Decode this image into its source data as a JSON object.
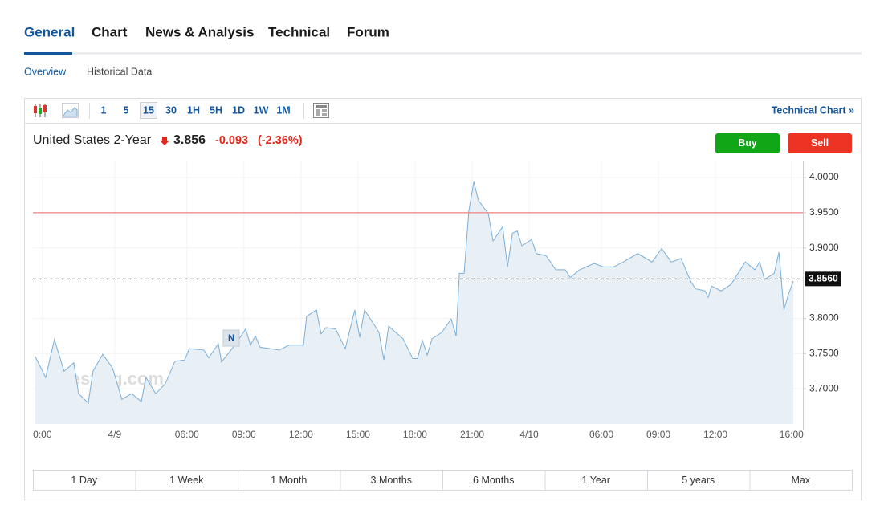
{
  "tabs": [
    "General",
    "Chart",
    "News & Analysis",
    "Technical",
    "Forum"
  ],
  "subtabs": [
    "Overview",
    "Historical Data"
  ],
  "toolbar": {
    "intervals": [
      "1",
      "5",
      "15",
      "30",
      "1H",
      "5H",
      "1D",
      "1W",
      "1M"
    ],
    "technical_chart": "Technical Chart »"
  },
  "quote": {
    "name": "United States 2-Year",
    "price": "3.856",
    "change": "-0.093",
    "change_percent": "(-2.36%)"
  },
  "buttons": {
    "buy": "Buy",
    "sell": "Sell"
  },
  "ranges": [
    "1 Day",
    "1 Week",
    "1 Month",
    "3 Months",
    "6 Months",
    "1 Year",
    "5 years",
    "Max"
  ],
  "chart_data": {
    "type": "area",
    "color": "#7aaed8",
    "fill_color": "#e8f0f6",
    "grid": true,
    "xlim": [
      -0.5,
      40.0
    ],
    "ylim": [
      3.65,
      4.024
    ],
    "xticks": [
      {
        "value": 0,
        "label": "0:00"
      },
      {
        "value": 3.8,
        "label": "4/9"
      },
      {
        "value": 7.6,
        "label": "06:00"
      },
      {
        "value": 10.6,
        "label": "09:00"
      },
      {
        "value": 13.6,
        "label": "12:00"
      },
      {
        "value": 16.6,
        "label": "15:00"
      },
      {
        "value": 19.6,
        "label": "18:00"
      },
      {
        "value": 22.6,
        "label": "21:00"
      },
      {
        "value": 25.6,
        "label": "4/10"
      },
      {
        "value": 29.4,
        "label": "06:00"
      },
      {
        "value": 32.4,
        "label": "09:00"
      },
      {
        "value": 35.4,
        "label": "12:00"
      },
      {
        "value": 39.4,
        "label": "16:00"
      }
    ],
    "yticks": [
      {
        "value": 3.7,
        "label": "3.7000"
      },
      {
        "value": 3.75,
        "label": "3.7500"
      },
      {
        "value": 3.8,
        "label": "3.8000"
      },
      {
        "value": 3.9,
        "label": "3.9000"
      },
      {
        "value": 3.95,
        "label": "3.9500"
      },
      {
        "value": 4,
        "label": "4.0000"
      }
    ],
    "reference_line": {
      "value": 3.95,
      "color": "#f08080"
    },
    "last_price": {
      "value": 3.856,
      "label": "3.8560"
    },
    "watermark": "Investing.com",
    "marker": {
      "label": "N",
      "x": 9.93,
      "y": 3.772
    },
    "x": [
      -0.38,
      0.17,
      0.63,
      1.14,
      1.65,
      1.9,
      2.41,
      2.66,
      3.17,
      3.68,
      4.18,
      4.69,
      5.2,
      5.45,
      5.96,
      6.46,
      6.97,
      7.48,
      7.73,
      8.49,
      8.75,
      9.25,
      9.42,
      10.18,
      10.69,
      10.94,
      11.2,
      11.45,
      11.96,
      12.46,
      12.97,
      13.73,
      13.9,
      14.41,
      14.66,
      14.91,
      15.42,
      15.93,
      16.43,
      16.69,
      16.94,
      17.45,
      17.7,
      17.96,
      18.21,
      18.97,
      19.48,
      19.73,
      19.98,
      20.24,
      20.49,
      21.0,
      21.5,
      21.76,
      21.93,
      22.18,
      22.43,
      22.69,
      22.94,
      23.45,
      23.7,
      24.21,
      24.46,
      24.72,
      24.97,
      25.22,
      25.73,
      25.98,
      26.49,
      27.0,
      27.5,
      27.76,
      28.26,
      29.02,
      29.53,
      30.04,
      30.55,
      31.31,
      32.07,
      32.57,
      33.08,
      33.59,
      34.09,
      34.35,
      34.85,
      35.02,
      35.19,
      35.7,
      36.21,
      36.71,
      36.97,
      37.47,
      37.73,
      37.98,
      38.49,
      38.74,
      39.0,
      39.25,
      39.5
    ],
    "values": [
      3.746,
      3.716,
      3.77,
      3.725,
      3.737,
      3.693,
      3.68,
      3.725,
      3.749,
      3.73,
      3.685,
      3.693,
      3.682,
      3.716,
      3.693,
      3.707,
      3.739,
      3.741,
      3.757,
      3.755,
      3.744,
      3.764,
      3.738,
      3.764,
      3.785,
      3.762,
      3.775,
      3.759,
      3.757,
      3.755,
      3.762,
      3.762,
      3.803,
      3.812,
      3.778,
      3.787,
      3.785,
      3.757,
      3.812,
      3.773,
      3.812,
      3.791,
      3.78,
      3.741,
      3.789,
      3.771,
      3.743,
      3.743,
      3.769,
      3.748,
      3.771,
      3.78,
      3.799,
      3.775,
      3.864,
      3.864,
      3.953,
      3.994,
      3.967,
      3.949,
      3.91,
      3.93,
      3.873,
      3.921,
      3.924,
      3.903,
      3.912,
      3.892,
      3.889,
      3.869,
      3.869,
      3.858,
      3.869,
      3.878,
      3.873,
      3.873,
      3.88,
      3.892,
      3.88,
      3.899,
      3.88,
      3.885,
      3.853,
      3.842,
      3.839,
      3.83,
      3.846,
      3.839,
      3.848,
      3.869,
      3.88,
      3.869,
      3.88,
      3.855,
      3.864,
      3.894,
      3.812,
      3.835,
      3.853
    ]
  }
}
